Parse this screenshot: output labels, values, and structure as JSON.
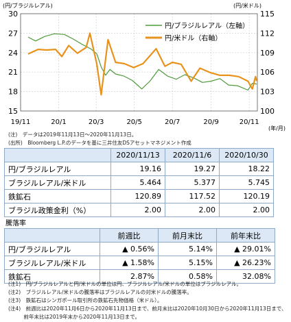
{
  "chart_data": {
    "type": "line",
    "y_left_unit": "(円/ブラジルレアル)",
    "y_right_unit": "(円/米ドル)",
    "x_unit": "(年/月)",
    "x_ticks": [
      "19/11",
      "20/1",
      "20/3",
      "20/5",
      "20/7",
      "20/9",
      "20/11"
    ],
    "y_left_ticks": [
      15,
      18,
      21,
      24,
      27,
      30
    ],
    "y_right_ticks": [
      100,
      103,
      106,
      109,
      112,
      115
    ],
    "ylim_left": [
      15,
      30
    ],
    "ylim_right": [
      100,
      115
    ],
    "xlim": [
      "2019-11-01",
      "2020-11-14"
    ],
    "grid": true,
    "legend_position": "top-right",
    "series": [
      {
        "name": "円/ブラジルレアル（左軸）",
        "axis": "left",
        "color": "#4e9a3a",
        "points": [
          [
            "2019-11-13",
            26.4
          ],
          [
            "2019-11-25",
            25.8
          ],
          [
            "2019-12-10",
            26.5
          ],
          [
            "2019-12-25",
            26.9
          ],
          [
            "2020-01-10",
            26.8
          ],
          [
            "2020-01-24",
            26.1
          ],
          [
            "2020-02-07",
            25.3
          ],
          [
            "2020-02-21",
            24.6
          ],
          [
            "2020-03-02",
            23.8
          ],
          [
            "2020-03-09",
            21.8
          ],
          [
            "2020-03-16",
            20.5
          ],
          [
            "2020-03-23",
            21.4
          ],
          [
            "2020-04-01",
            20.7
          ],
          [
            "2020-04-14",
            20.4
          ],
          [
            "2020-04-28",
            19.7
          ],
          [
            "2020-05-13",
            18.4
          ],
          [
            "2020-05-26",
            19.6
          ],
          [
            "2020-06-09",
            21.4
          ],
          [
            "2020-06-23",
            20.4
          ],
          [
            "2020-07-07",
            19.9
          ],
          [
            "2020-07-21",
            20.6
          ],
          [
            "2020-08-04",
            20.1
          ],
          [
            "2020-08-18",
            19.4
          ],
          [
            "2020-09-01",
            19.6
          ],
          [
            "2020-09-15",
            20.0
          ],
          [
            "2020-09-29",
            19.0
          ],
          [
            "2020-10-13",
            18.9
          ],
          [
            "2020-10-30",
            18.22
          ],
          [
            "2020-11-06",
            19.27
          ],
          [
            "2020-11-13",
            19.16
          ]
        ]
      },
      {
        "name": "円/米ドル（右軸）",
        "axis": "right",
        "color": "#e8921c",
        "points": [
          [
            "2019-11-13",
            108.8
          ],
          [
            "2019-11-29",
            109.5
          ],
          [
            "2019-12-13",
            109.4
          ],
          [
            "2019-12-27",
            109.5
          ],
          [
            "2020-01-06",
            108.4
          ],
          [
            "2020-01-17",
            110.1
          ],
          [
            "2020-01-31",
            108.9
          ],
          [
            "2020-02-14",
            109.8
          ],
          [
            "2020-02-20",
            112.0
          ],
          [
            "2020-03-02",
            107.2
          ],
          [
            "2020-03-09",
            102.5
          ],
          [
            "2020-03-20",
            111.0
          ],
          [
            "2020-04-01",
            107.5
          ],
          [
            "2020-04-15",
            107.3
          ],
          [
            "2020-04-30",
            106.7
          ],
          [
            "2020-05-15",
            107.3
          ],
          [
            "2020-06-05",
            109.6
          ],
          [
            "2020-06-19",
            106.9
          ],
          [
            "2020-07-01",
            107.5
          ],
          [
            "2020-07-15",
            107.2
          ],
          [
            "2020-07-31",
            104.6
          ],
          [
            "2020-08-14",
            106.6
          ],
          [
            "2020-08-31",
            105.9
          ],
          [
            "2020-09-15",
            105.5
          ],
          [
            "2020-09-30",
            105.5
          ],
          [
            "2020-10-15",
            105.3
          ],
          [
            "2020-10-30",
            104.6
          ],
          [
            "2020-11-06",
            103.4
          ],
          [
            "2020-11-11",
            105.3
          ],
          [
            "2020-11-13",
            104.6
          ]
        ]
      }
    ]
  },
  "notes": {
    "data_period": "(注)　データは2019年11月13日～2020年11月13日。",
    "source": "(出所)　Bloomberg L.P.のデータを基に三井住友DSアセットマネジメント作成"
  },
  "table1": {
    "headers": [
      "2020/11/13",
      "2020/11/6",
      "2020/10/30"
    ],
    "rows": [
      {
        "label": "円/ブラジルレアル",
        "values": [
          "19.16",
          "19.27",
          "18.22"
        ]
      },
      {
        "label": "ブラジルレアル/米ドル",
        "values": [
          "5.464",
          "5.377",
          "5.745"
        ]
      },
      {
        "label": "鉄鉱石",
        "values": [
          "120.89",
          "117.52",
          "120.19"
        ]
      },
      {
        "label": "ブラジル政策金利（%）",
        "values": [
          "2.00",
          "2.00",
          "2.00"
        ]
      }
    ]
  },
  "table2": {
    "title": "騰落率",
    "headers": [
      "前週比",
      "前月末比",
      "前年末比"
    ],
    "rows": [
      {
        "label": "円/ブラジルレアル",
        "values": [
          "▲ 0.56%",
          "5.14%",
          "▲ 29.01%"
        ]
      },
      {
        "label": "ブラジルレアル/米ドル",
        "values": [
          "▲ 1.58%",
          "5.15%",
          "▲ 26.23%"
        ]
      },
      {
        "label": "鉄鉱石",
        "values": [
          "2.87%",
          "0.58%",
          "32.08%"
        ]
      }
    ]
  },
  "footnotes": [
    "(注1)　円/ブラジルレアルと円/米ドルの単位は円、ブラジルレアル/米ドルの単位はブラジルレアル。",
    "(注2)　ブラジルレアル/米ドルの騰落率はブラジルレアルの対米ドルの騰落率。",
    "(注3)　鉄鉱石はシンガポール取引所の鉄鉱石先物価格（米ドル）。",
    "(注4)　前週比は2020年11月6日から2020年11月13日まで、前月末比は2020年10月30日から2020年11月13日まで、",
    "　　　前年末比は2019年末から2020年11月13日まで。"
  ]
}
